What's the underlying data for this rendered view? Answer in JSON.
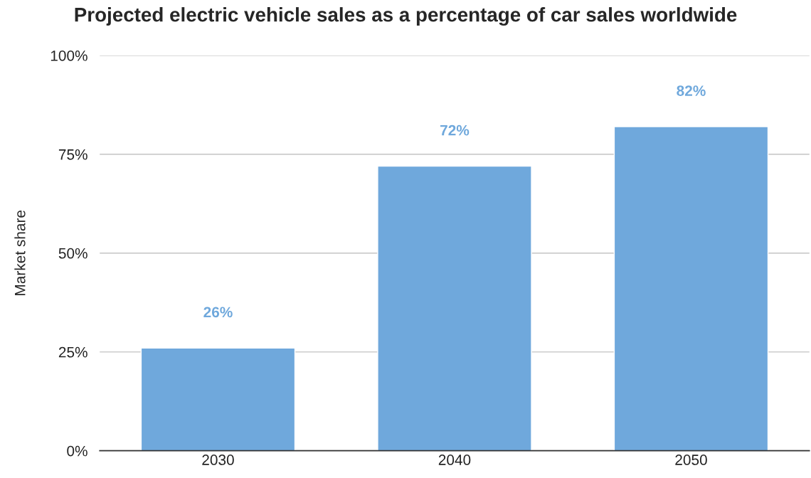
{
  "chart_data": {
    "type": "bar",
    "title": "Projected electric vehicle sales as a percentage of car sales worldwide",
    "ylabel": "Market share",
    "categories": [
      "2030",
      "2040",
      "2050"
    ],
    "values": [
      26,
      72,
      82
    ],
    "value_labels": [
      "26%",
      "72%",
      "82%"
    ],
    "color": "#6fa8dc",
    "ylim": [
      0,
      100
    ],
    "yticks": [
      {
        "value": 0,
        "label": "0%"
      },
      {
        "value": 25,
        "label": "25%"
      },
      {
        "value": 50,
        "label": "50%"
      },
      {
        "value": 75,
        "label": "75%"
      },
      {
        "value": 100,
        "label": "100%"
      }
    ],
    "grid": "y",
    "legend": false
  }
}
